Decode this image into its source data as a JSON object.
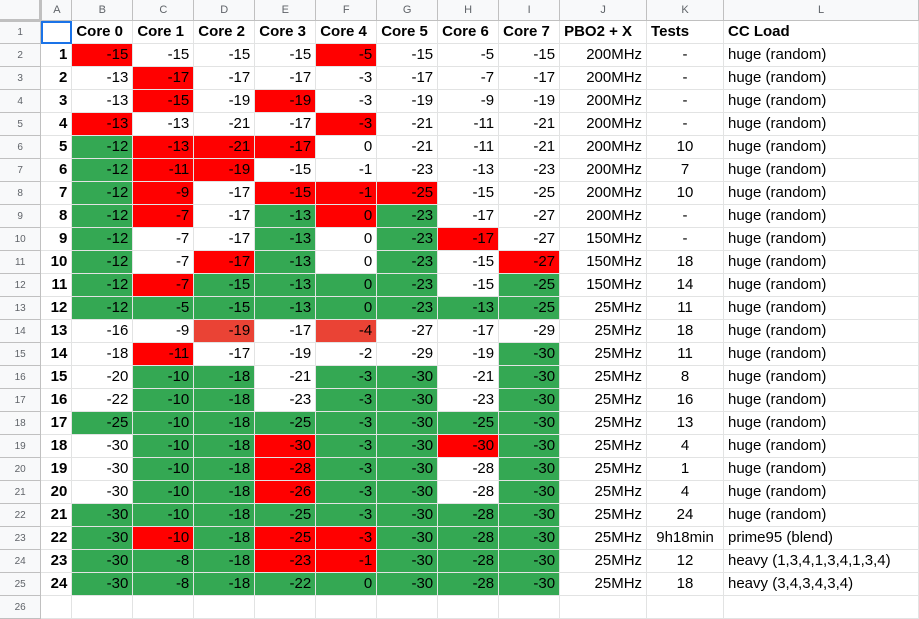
{
  "columns": [
    "A",
    "B",
    "C",
    "D",
    "E",
    "F",
    "G",
    "H",
    "I",
    "J",
    "K",
    "L"
  ],
  "colors": {
    "red": "#ff0000",
    "green": "#34a853",
    "lightred": "#ea4335",
    "white": "#ffffff"
  },
  "header": [
    "",
    "Core 0",
    "Core 1",
    "Core 2",
    "Core 3",
    "Core 4",
    "Core 5",
    "Core 6",
    "Core 7",
    "PBO2 + X",
    "Tests",
    "CC Load"
  ],
  "rows": [
    {
      "vals": [
        "1",
        "-15",
        "-15",
        "-15",
        "-15",
        "-5",
        "-15",
        "-5",
        "-15",
        "200MHz",
        "-",
        "huge (random)"
      ],
      "fill": [
        "",
        "r",
        "",
        "",
        "",
        "r",
        "",
        "",
        "",
        "",
        "",
        ""
      ]
    },
    {
      "vals": [
        "2",
        "-13",
        "-17",
        "-17",
        "-17",
        "-3",
        "-17",
        "-7",
        "-17",
        "200MHz",
        "-",
        "huge (random)"
      ],
      "fill": [
        "",
        "",
        "r",
        "",
        "",
        "",
        "",
        "",
        "",
        "",
        "",
        ""
      ]
    },
    {
      "vals": [
        "3",
        "-13",
        "-15",
        "-19",
        "-19",
        "-3",
        "-19",
        "-9",
        "-19",
        "200MHz",
        "-",
        "huge (random)"
      ],
      "fill": [
        "",
        "",
        "r",
        "",
        "r",
        "",
        "",
        "",
        "",
        "",
        "",
        ""
      ]
    },
    {
      "vals": [
        "4",
        "-13",
        "-13",
        "-21",
        "-17",
        "-3",
        "-21",
        "-11",
        "-21",
        "200MHz",
        "-",
        "huge (random)"
      ],
      "fill": [
        "",
        "r",
        "",
        "",
        "",
        "r",
        "",
        "",
        "",
        "",
        "",
        ""
      ]
    },
    {
      "vals": [
        "5",
        "-12",
        "-13",
        "-21",
        "-17",
        "0",
        "-21",
        "-11",
        "-21",
        "200MHz",
        "10",
        "huge (random)"
      ],
      "fill": [
        "",
        "g",
        "r",
        "r",
        "r",
        "",
        "",
        "",
        "",
        "",
        "",
        ""
      ]
    },
    {
      "vals": [
        "6",
        "-12",
        "-11",
        "-19",
        "-15",
        "-1",
        "-23",
        "-13",
        "-23",
        "200MHz",
        "7",
        "huge (random)"
      ],
      "fill": [
        "",
        "g",
        "r",
        "r",
        "",
        "",
        "",
        "",
        "",
        "",
        "",
        ""
      ]
    },
    {
      "vals": [
        "7",
        "-12",
        "-9",
        "-17",
        "-15",
        "-1",
        "-25",
        "-15",
        "-25",
        "200MHz",
        "10",
        "huge (random)"
      ],
      "fill": [
        "",
        "g",
        "r",
        "",
        "r",
        "r",
        "r",
        "",
        "",
        "",
        "",
        ""
      ]
    },
    {
      "vals": [
        "8",
        "-12",
        "-7",
        "-17",
        "-13",
        "0",
        "-23",
        "-17",
        "-27",
        "200MHz",
        "-",
        "huge (random)"
      ],
      "fill": [
        "",
        "g",
        "r",
        "",
        "g",
        "r",
        "g",
        "",
        "",
        "",
        "",
        ""
      ]
    },
    {
      "vals": [
        "9",
        "-12",
        "-7",
        "-17",
        "-13",
        "0",
        "-23",
        "-17",
        "-27",
        "150MHz",
        "-",
        "huge (random)"
      ],
      "fill": [
        "",
        "g",
        "",
        "",
        "g",
        "",
        "g",
        "r",
        "",
        "",
        "",
        ""
      ]
    },
    {
      "vals": [
        "10",
        "-12",
        "-7",
        "-17",
        "-13",
        "0",
        "-23",
        "-15",
        "-27",
        "150MHz",
        "18",
        "huge (random)"
      ],
      "fill": [
        "",
        "g",
        "",
        "r",
        "g",
        "",
        "g",
        "",
        "r",
        "",
        "",
        ""
      ]
    },
    {
      "vals": [
        "11",
        "-12",
        "-7",
        "-15",
        "-13",
        "0",
        "-23",
        "-15",
        "-25",
        "150MHz",
        "14",
        "huge (random)"
      ],
      "fill": [
        "",
        "g",
        "r",
        "g",
        "g",
        "g",
        "g",
        "",
        "g",
        "",
        "",
        ""
      ]
    },
    {
      "vals": [
        "12",
        "-12",
        "-5",
        "-15",
        "-13",
        "0",
        "-23",
        "-13",
        "-25",
        "25MHz",
        "11",
        "huge (random)"
      ],
      "fill": [
        "",
        "g",
        "g",
        "g",
        "g",
        "g",
        "g",
        "g",
        "g",
        "",
        "",
        ""
      ]
    },
    {
      "vals": [
        "13",
        "-16",
        "-9",
        "-19",
        "-17",
        "-4",
        "-27",
        "-17",
        "-29",
        "25MHz",
        "18",
        "huge (random)"
      ],
      "fill": [
        "",
        "",
        "",
        "l",
        "",
        "l",
        "",
        "",
        "",
        "",
        "",
        ""
      ]
    },
    {
      "vals": [
        "14",
        "-18",
        "-11",
        "-17",
        "-19",
        "-2",
        "-29",
        "-19",
        "-30",
        "25MHz",
        "11",
        "huge (random)"
      ],
      "fill": [
        "",
        "",
        "r",
        "",
        "",
        "",
        "",
        "",
        "g",
        "",
        "",
        ""
      ]
    },
    {
      "vals": [
        "15",
        "-20",
        "-10",
        "-18",
        "-21",
        "-3",
        "-30",
        "-21",
        "-30",
        "25MHz",
        "8",
        "huge (random)"
      ],
      "fill": [
        "",
        "",
        "g",
        "g",
        "",
        "g",
        "g",
        "",
        "g",
        "",
        "",
        ""
      ]
    },
    {
      "vals": [
        "16",
        "-22",
        "-10",
        "-18",
        "-23",
        "-3",
        "-30",
        "-23",
        "-30",
        "25MHz",
        "16",
        "huge (random)"
      ],
      "fill": [
        "",
        "",
        "g",
        "g",
        "",
        "g",
        "g",
        "",
        "g",
        "",
        "",
        ""
      ]
    },
    {
      "vals": [
        "17",
        "-25",
        "-10",
        "-18",
        "-25",
        "-3",
        "-30",
        "-25",
        "-30",
        "25MHz",
        "13",
        "huge (random)"
      ],
      "fill": [
        "",
        "g",
        "g",
        "g",
        "g",
        "g",
        "g",
        "g",
        "g",
        "",
        "",
        ""
      ]
    },
    {
      "vals": [
        "18",
        "-30",
        "-10",
        "-18",
        "-30",
        "-3",
        "-30",
        "-30",
        "-30",
        "25MHz",
        "4",
        "huge (random)"
      ],
      "fill": [
        "",
        "",
        "g",
        "g",
        "r",
        "g",
        "g",
        "r",
        "g",
        "",
        "",
        ""
      ]
    },
    {
      "vals": [
        "19",
        "-30",
        "-10",
        "-18",
        "-28",
        "-3",
        "-30",
        "-28",
        "-30",
        "25MHz",
        "1",
        "huge (random)"
      ],
      "fill": [
        "",
        "",
        "g",
        "g",
        "r",
        "g",
        "g",
        "",
        "g",
        "",
        "",
        ""
      ]
    },
    {
      "vals": [
        "20",
        "-30",
        "-10",
        "-18",
        "-26",
        "-3",
        "-30",
        "-28",
        "-30",
        "25MHz",
        "4",
        "huge (random)"
      ],
      "fill": [
        "",
        "",
        "g",
        "g",
        "r",
        "g",
        "g",
        "",
        "g",
        "",
        "",
        ""
      ]
    },
    {
      "vals": [
        "21",
        "-30",
        "-10",
        "-18",
        "-25",
        "-3",
        "-30",
        "-28",
        "-30",
        "25MHz",
        "24",
        "huge (random)"
      ],
      "fill": [
        "",
        "g",
        "g",
        "g",
        "g",
        "g",
        "g",
        "g",
        "g",
        "",
        "",
        ""
      ]
    },
    {
      "vals": [
        "22",
        "-30",
        "-10",
        "-18",
        "-25",
        "-3",
        "-30",
        "-28",
        "-30",
        "25MHz",
        "9h18min",
        "prime95 (blend)"
      ],
      "fill": [
        "",
        "g",
        "r",
        "g",
        "r",
        "r",
        "g",
        "g",
        "g",
        "",
        "",
        ""
      ]
    },
    {
      "vals": [
        "23",
        "-30",
        "-8",
        "-18",
        "-23",
        "-1",
        "-30",
        "-28",
        "-30",
        "25MHz",
        "12",
        "heavy (1,3,4,1,3,4,1,3,4)"
      ],
      "fill": [
        "",
        "g",
        "g",
        "g",
        "r",
        "r",
        "g",
        "g",
        "g",
        "",
        "",
        ""
      ]
    },
    {
      "vals": [
        "24",
        "-30",
        "-8",
        "-18",
        "-22",
        "0",
        "-30",
        "-28",
        "-30",
        "25MHz",
        "18",
        "heavy (3,4,3,4,3,4)"
      ],
      "fill": [
        "",
        "g",
        "g",
        "g",
        "g",
        "g",
        "g",
        "g",
        "g",
        "",
        "",
        ""
      ]
    }
  ]
}
